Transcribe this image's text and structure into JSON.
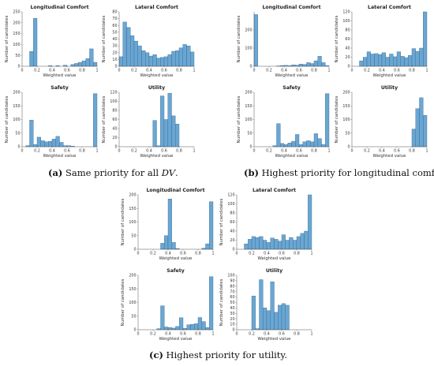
{
  "colors": {
    "bar_fill": "#6aa6d2",
    "bar_stroke": "#2f5f8c",
    "axis": "#555555"
  },
  "captions": [
    {
      "tag": "(a)",
      "text": " Same priority for all ",
      "math": "DV",
      "tail": "."
    },
    {
      "tag": "(b)",
      "text": " Highest priority for longitudinal comfort.",
      "math": "",
      "tail": ""
    },
    {
      "tag": "(c)",
      "text": " Highest priority for utility.",
      "math": "",
      "tail": ""
    }
  ],
  "chart_data": [
    {
      "group": "a",
      "type": "bar",
      "title": "Longitudinal Comfort",
      "xlabel": "Weighted value",
      "ylabel": "Number of candidates",
      "xlim": [
        0,
        1
      ],
      "ylim": [
        0,
        250
      ],
      "yticks": [
        0,
        50,
        100,
        150,
        200,
        250
      ],
      "xticks": [
        0,
        0.2,
        0.4,
        0.6,
        0.8,
        1
      ],
      "bin_width": 0.05,
      "bin_starts": [
        0.1,
        0.15,
        0.35,
        0.45,
        0.55,
        0.65,
        0.7,
        0.75,
        0.8,
        0.85,
        0.9,
        0.95
      ],
      "values": [
        68,
        220,
        3,
        3,
        5,
        8,
        13,
        18,
        25,
        35,
        80,
        18
      ]
    },
    {
      "group": "a",
      "type": "bar",
      "title": "Lateral Comfort",
      "xlabel": "Weighted value",
      "ylabel": "Number of candidates",
      "xlim": [
        0,
        1
      ],
      "ylim": [
        0,
        80
      ],
      "yticks": [
        0,
        10,
        20,
        30,
        40,
        50,
        60,
        70,
        80
      ],
      "xticks": [
        0,
        0.2,
        0.4,
        0.6,
        0.8,
        1
      ],
      "bin_width": 0.05,
      "bin_starts": [
        0.0,
        0.05,
        0.1,
        0.15,
        0.2,
        0.25,
        0.3,
        0.35,
        0.4,
        0.45,
        0.5,
        0.55,
        0.6,
        0.65,
        0.7,
        0.75,
        0.8,
        0.85,
        0.9,
        0.95
      ],
      "values": [
        14,
        65,
        57,
        45,
        37,
        30,
        23,
        20,
        15,
        17,
        12,
        13,
        14,
        17,
        22,
        23,
        27,
        32,
        30,
        21
      ]
    },
    {
      "group": "a",
      "type": "bar",
      "title": "Safety",
      "xlabel": "Weighted value",
      "ylabel": "Number of candidates",
      "xlim": [
        0,
        1
      ],
      "ylim": [
        0,
        200
      ],
      "yticks": [
        0,
        50,
        100,
        150,
        200
      ],
      "xticks": [
        0,
        0.2,
        0.4,
        0.6,
        0.8,
        1
      ],
      "bin_width": 0.05,
      "bin_starts": [
        0.05,
        0.1,
        0.15,
        0.2,
        0.25,
        0.3,
        0.35,
        0.4,
        0.45,
        0.5,
        0.55,
        0.6,
        0.65,
        0.95
      ],
      "values": [
        4,
        98,
        8,
        35,
        22,
        18,
        20,
        28,
        38,
        16,
        4,
        4,
        2,
        195
      ]
    },
    {
      "group": "a",
      "type": "bar",
      "title": "Utility",
      "xlabel": "Weighted value",
      "ylabel": "Number of candidates",
      "xlim": [
        0,
        1
      ],
      "ylim": [
        0,
        120
      ],
      "yticks": [
        0,
        20,
        40,
        60,
        80,
        100,
        120
      ],
      "xticks": [
        0,
        0.2,
        0.4,
        0.6,
        0.8,
        1
      ],
      "bin_width": 0.05,
      "bin_starts": [
        0.45,
        0.5,
        0.55,
        0.6,
        0.65,
        0.7,
        0.75
      ],
      "values": [
        58,
        2,
        112,
        60,
        118,
        68,
        50
      ]
    },
    {
      "group": "b",
      "type": "bar",
      "title": "Longitudinal Comfort",
      "xlabel": "Weighted value",
      "ylabel": "Number of candidates",
      "xlim": [
        0,
        1
      ],
      "ylim": [
        0,
        300
      ],
      "yticks": [
        0,
        100,
        200
      ],
      "xticks": [
        0,
        0.2,
        0.4,
        0.6,
        0.8,
        1
      ],
      "bin_width": 0.05,
      "bin_starts": [
        0.0,
        0.3,
        0.35,
        0.4,
        0.45,
        0.5,
        0.55,
        0.6,
        0.65,
        0.7,
        0.75,
        0.8,
        0.85,
        0.9,
        0.95
      ],
      "values": [
        285,
        2,
        4,
        5,
        3,
        8,
        6,
        12,
        10,
        20,
        15,
        30,
        55,
        20,
        3
      ]
    },
    {
      "group": "b",
      "type": "bar",
      "title": "Lateral Comfort",
      "xlabel": "Weighted value",
      "ylabel": "Number of candidates",
      "xlim": [
        0,
        1
      ],
      "ylim": [
        0,
        120
      ],
      "yticks": [
        0,
        20,
        40,
        60,
        80,
        100,
        120
      ],
      "xticks": [
        0,
        0.2,
        0.4,
        0.6,
        0.8,
        1
      ],
      "bin_width": 0.05,
      "bin_starts": [
        0.1,
        0.15,
        0.2,
        0.25,
        0.3,
        0.35,
        0.4,
        0.45,
        0.5,
        0.55,
        0.6,
        0.65,
        0.7,
        0.75,
        0.8,
        0.85,
        0.9,
        0.95
      ],
      "values": [
        12,
        20,
        32,
        27,
        28,
        26,
        30,
        20,
        27,
        21,
        32,
        22,
        19,
        24,
        39,
        33,
        40,
        120
      ]
    },
    {
      "group": "b",
      "type": "bar",
      "title": "Safety",
      "xlabel": "Weighted value",
      "ylabel": "Number of candidates",
      "xlim": [
        0,
        1
      ],
      "ylim": [
        0,
        200
      ],
      "yticks": [
        0,
        50,
        100,
        150,
        200
      ],
      "xticks": [
        0,
        0.2,
        0.4,
        0.6,
        0.8,
        1
      ],
      "bin_width": 0.05,
      "bin_starts": [
        0.25,
        0.3,
        0.35,
        0.4,
        0.45,
        0.5,
        0.55,
        0.6,
        0.65,
        0.7,
        0.75,
        0.8,
        0.85,
        0.9,
        0.95
      ],
      "values": [
        4,
        85,
        12,
        8,
        14,
        20,
        45,
        8,
        18,
        22,
        18,
        48,
        30,
        8,
        195
      ]
    },
    {
      "group": "b",
      "type": "bar",
      "title": "Utility",
      "xlabel": "Weighted value",
      "ylabel": "Number of candidates",
      "xlim": [
        0,
        1
      ],
      "ylim": [
        0,
        200
      ],
      "yticks": [
        0,
        50,
        100,
        150,
        200
      ],
      "xticks": [
        0,
        0.2,
        0.4,
        0.6,
        0.8,
        1
      ],
      "bin_width": 0.05,
      "bin_starts": [
        0.8,
        0.85,
        0.9,
        0.95
      ],
      "values": [
        65,
        140,
        180,
        115
      ]
    },
    {
      "group": "c",
      "type": "bar",
      "title": "Longitudinal Comfort",
      "xlabel": "Weighted value",
      "ylabel": "Number of candidates",
      "xlim": [
        0,
        1
      ],
      "ylim": [
        0,
        200
      ],
      "yticks": [
        0,
        50,
        100,
        150,
        200
      ],
      "xticks": [
        0,
        0.2,
        0.4,
        0.6,
        0.8,
        1
      ],
      "bin_width": 0.05,
      "bin_starts": [
        0.3,
        0.35,
        0.4,
        0.45,
        0.5,
        0.85,
        0.9,
        0.95
      ],
      "values": [
        22,
        50,
        185,
        25,
        3,
        4,
        20,
        175
      ]
    },
    {
      "group": "c",
      "type": "bar",
      "title": "Lateral Comfort",
      "xlabel": "Weighted value",
      "ylabel": "Number of candidates",
      "xlim": [
        0,
        1
      ],
      "ylim": [
        0,
        120
      ],
      "yticks": [
        0,
        20,
        40,
        60,
        80,
        100,
        120
      ],
      "xticks": [
        0,
        0.2,
        0.4,
        0.6,
        0.8,
        1
      ],
      "bin_width": 0.05,
      "bin_starts": [
        0.1,
        0.15,
        0.2,
        0.25,
        0.3,
        0.35,
        0.4,
        0.45,
        0.5,
        0.55,
        0.6,
        0.65,
        0.7,
        0.75,
        0.8,
        0.85,
        0.9,
        0.95
      ],
      "values": [
        12,
        22,
        28,
        26,
        28,
        20,
        15,
        25,
        22,
        18,
        32,
        20,
        26,
        20,
        28,
        35,
        40,
        120
      ]
    },
    {
      "group": "c",
      "type": "bar",
      "title": "Safety",
      "xlabel": "Weighted value",
      "ylabel": "Number of candidates",
      "xlim": [
        0,
        1
      ],
      "ylim": [
        0,
        200
      ],
      "yticks": [
        0,
        50,
        100,
        150,
        200
      ],
      "xticks": [
        0,
        0.2,
        0.4,
        0.6,
        0.8,
        1
      ],
      "bin_width": 0.05,
      "bin_starts": [
        0.25,
        0.3,
        0.35,
        0.4,
        0.45,
        0.5,
        0.55,
        0.6,
        0.65,
        0.7,
        0.75,
        0.8,
        0.85,
        0.9,
        0.95
      ],
      "values": [
        4,
        88,
        10,
        8,
        6,
        12,
        44,
        5,
        18,
        20,
        22,
        45,
        30,
        8,
        195
      ]
    },
    {
      "group": "c",
      "type": "bar",
      "title": "Utility",
      "xlabel": "Weighted value",
      "ylabel": "Number of candidates",
      "xlim": [
        0,
        1
      ],
      "ylim": [
        0,
        100
      ],
      "yticks": [
        0,
        10,
        20,
        30,
        40,
        50,
        60,
        70,
        80,
        90,
        100
      ],
      "xticks": [
        0,
        0.2,
        0.4,
        0.6,
        0.8,
        1
      ],
      "bin_width": 0.05,
      "bin_starts": [
        0.2,
        0.25,
        0.3,
        0.35,
        0.4,
        0.45,
        0.5,
        0.55,
        0.6,
        0.65
      ],
      "values": [
        62,
        2,
        92,
        40,
        35,
        88,
        32,
        45,
        48,
        45
      ]
    }
  ]
}
